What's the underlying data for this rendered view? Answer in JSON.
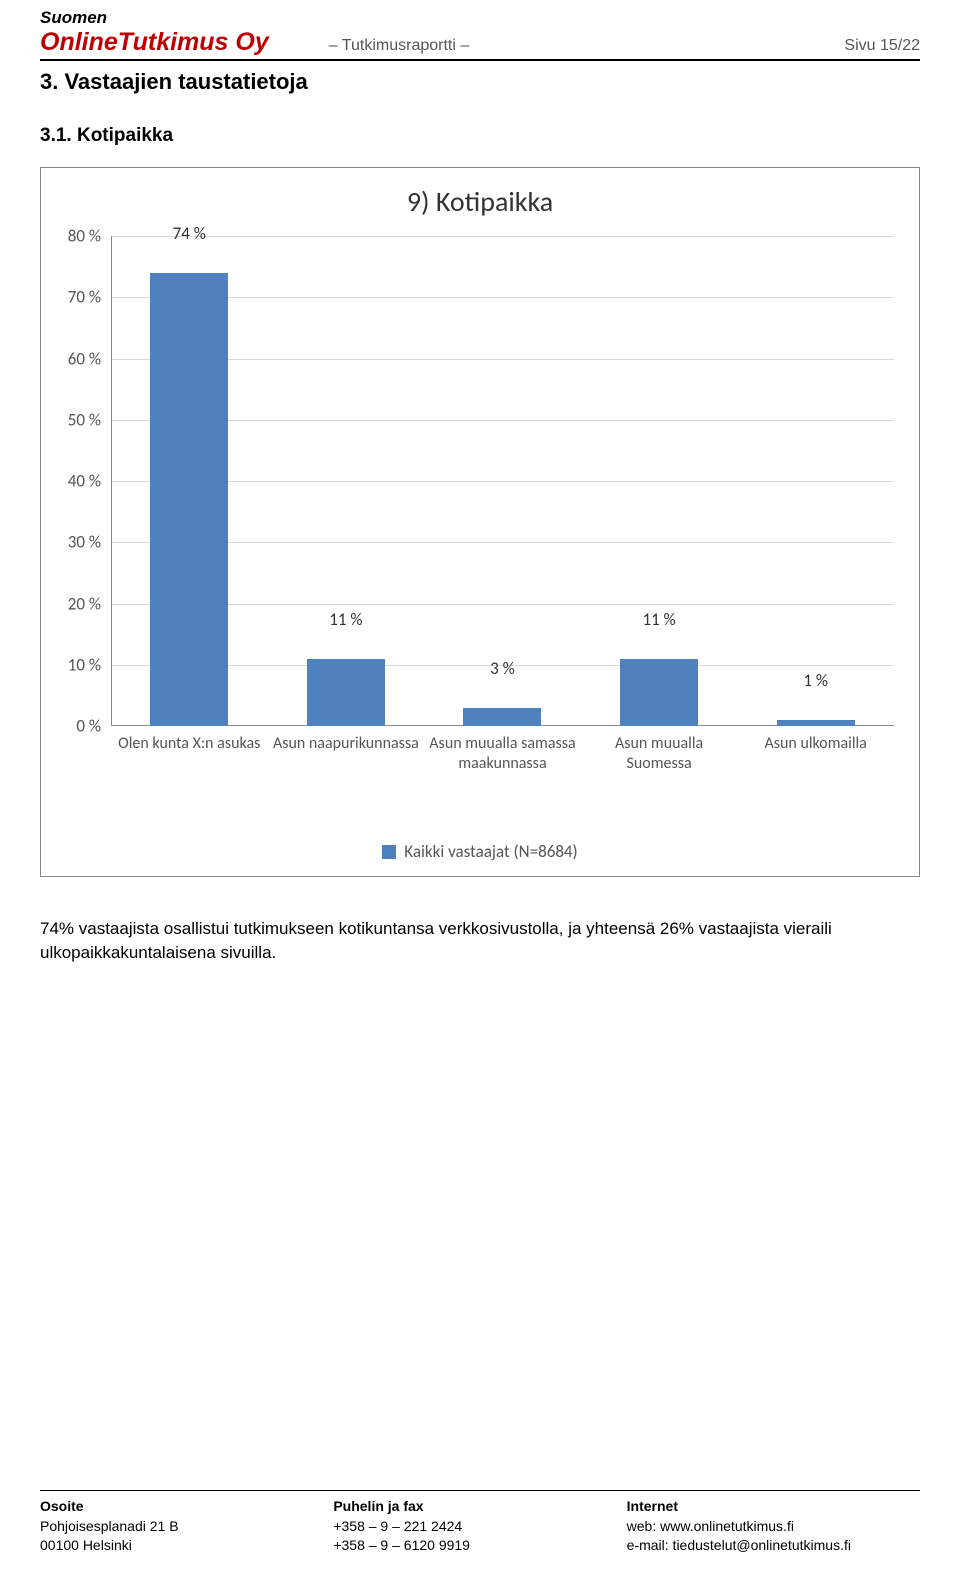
{
  "header": {
    "company_line1": "Suomen",
    "company_line2": "OnlineTutkimus Oy",
    "center": "– Tutkimusraportti –",
    "page": "Sivu 15/22"
  },
  "section_heading": "3. Vastaajien taustatietoja",
  "sub_heading": "3.1. Kotipaikka",
  "chart": {
    "type": "bar",
    "title": "9) Kotipaikka",
    "categories": [
      "Olen kunta X:n asukas",
      "Asun naapurikunnassa",
      "Asun muualla samassa maakunnassa",
      "Asun muualla Suomessa",
      "Asun ulkomailla"
    ],
    "values": [
      74,
      11,
      3,
      11,
      1
    ],
    "value_labels": [
      "74 %",
      "11 %",
      "3 %",
      "11 %",
      "1 %"
    ],
    "bar_color": "#4f81bd",
    "ylim": [
      0,
      80
    ],
    "ytick_step": 10,
    "y_ticks": [
      "0 %",
      "10 %",
      "20 %",
      "30 %",
      "40 %",
      "50 %",
      "60 %",
      "70 %",
      "80 %"
    ],
    "grid_color": "#d8d8d8",
    "axis_color": "#888888",
    "font_family": "Calibri",
    "title_fontsize": 28,
    "label_fontsize": 17,
    "category_fontsize": 16,
    "legend_label": "Kaikki vastaajat (N=8684)",
    "legend_color": "#4f81bd",
    "background_color": "#ffffff"
  },
  "body_text": "74% vastaajista osallistui tutkimukseen kotikuntansa verkkosivustolla, ja yhteensä 26% vastaajista vieraili ulkopaikkakuntalaisena sivuilla.",
  "footer": {
    "col1": {
      "title": "Osoite",
      "line1": "Pohjoisesplanadi 21 B",
      "line2": "00100 Helsinki"
    },
    "col2": {
      "title": "Puhelin ja fax",
      "line1": "+358 – 9 – 221 2424",
      "line2": "+358 – 9 – 6120 9919"
    },
    "col3": {
      "title": "Internet",
      "line1": "web: www.onlinetutkimus.fi",
      "line2": "e-mail: tiedustelut@onlinetutkimus.fi"
    }
  }
}
